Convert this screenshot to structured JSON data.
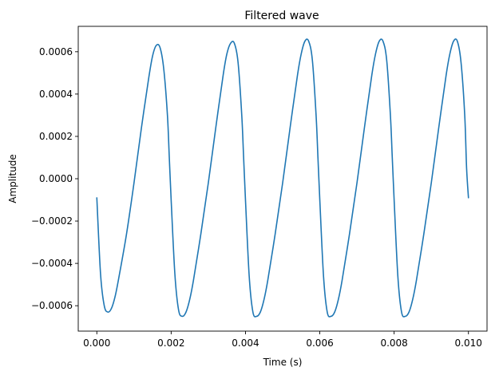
{
  "chart_data": {
    "type": "line",
    "title": "Filtered wave",
    "xlabel": "Time (s)",
    "ylabel": "Amplitude",
    "xlim": [
      -0.0005,
      0.0105
    ],
    "ylim": [
      -0.00072,
      0.00072
    ],
    "xticks": [
      0.0,
      0.002,
      0.004,
      0.006,
      0.008,
      0.01
    ],
    "xtick_labels": [
      "0.000",
      "0.002",
      "0.004",
      "0.006",
      "0.008",
      "0.010"
    ],
    "yticks": [
      -0.0006,
      -0.0004,
      -0.0002,
      0.0,
      0.0002,
      0.0004,
      0.0006
    ],
    "ytick_labels": [
      "−0.0006",
      "−0.0004",
      "−0.0002",
      "0.0000",
      "0.0002",
      "0.0004",
      "0.0006"
    ],
    "grid": false,
    "colors": {
      "series": "#1f77b4"
    },
    "series": [
      {
        "x": [
          0.0,
          0.0001,
          0.0002,
          0.0003,
          0.0004,
          0.0005,
          0.0006,
          0.0008,
          0.001,
          0.0012,
          0.0014,
          0.0015,
          0.0016,
          0.0017,
          0.0018,
          0.0019,
          0.00195,
          0.002,
          0.0021,
          0.0022,
          0.0023,
          0.0024,
          0.0025,
          0.0026,
          0.0028,
          0.003,
          0.0032,
          0.0034,
          0.0035,
          0.0036,
          0.0037,
          0.0038,
          0.0039,
          0.00395,
          0.004,
          0.0041,
          0.0042,
          0.0043,
          0.0044,
          0.0045,
          0.0046,
          0.0048,
          0.005,
          0.0052,
          0.0054,
          0.0055,
          0.0056,
          0.0057,
          0.0058,
          0.0059,
          0.00595,
          0.006,
          0.0061,
          0.0062,
          0.0063,
          0.0064,
          0.0065,
          0.0066,
          0.0068,
          0.007,
          0.0072,
          0.0074,
          0.0075,
          0.0076,
          0.0077,
          0.0078,
          0.0079,
          0.00795,
          0.008,
          0.0081,
          0.0082,
          0.0083,
          0.0084,
          0.0085,
          0.0086,
          0.0088,
          0.009,
          0.0092,
          0.0094,
          0.0095,
          0.0096,
          0.0097,
          0.0098,
          0.0099,
          0.00995,
          0.01
        ],
        "y": [
          -9e-05,
          -0.00045,
          -0.0006,
          -0.00063,
          -0.00061,
          -0.00055,
          -0.00046,
          -0.00026,
          -2e-05,
          0.00024,
          0.00048,
          0.00058,
          0.00063,
          0.00062,
          0.00052,
          0.0003,
          0.0001,
          -0.0001,
          -0.00045,
          -0.00062,
          -0.00065,
          -0.00063,
          -0.00057,
          -0.00048,
          -0.00026,
          -2e-05,
          0.00024,
          0.00049,
          0.00059,
          0.00064,
          0.00064,
          0.00055,
          0.0003,
          0.0001,
          -0.0001,
          -0.00046,
          -0.00063,
          -0.00065,
          -0.00063,
          -0.00057,
          -0.00048,
          -0.00026,
          -2e-05,
          0.00024,
          0.00049,
          0.00059,
          0.00065,
          0.00065,
          0.00056,
          0.0003,
          0.0001,
          -0.0001,
          -0.00046,
          -0.00063,
          -0.00065,
          -0.00063,
          -0.00057,
          -0.00048,
          -0.00026,
          -2e-05,
          0.00024,
          0.00049,
          0.00059,
          0.00065,
          0.00065,
          0.00056,
          0.0003,
          0.0001,
          -0.0001,
          -0.00046,
          -0.00063,
          -0.00065,
          -0.00063,
          -0.00057,
          -0.00048,
          -0.00026,
          -2e-05,
          0.00024,
          0.00049,
          0.00059,
          0.00065,
          0.00065,
          0.00055,
          0.0003,
          5e-05,
          -9e-05
        ]
      }
    ]
  }
}
